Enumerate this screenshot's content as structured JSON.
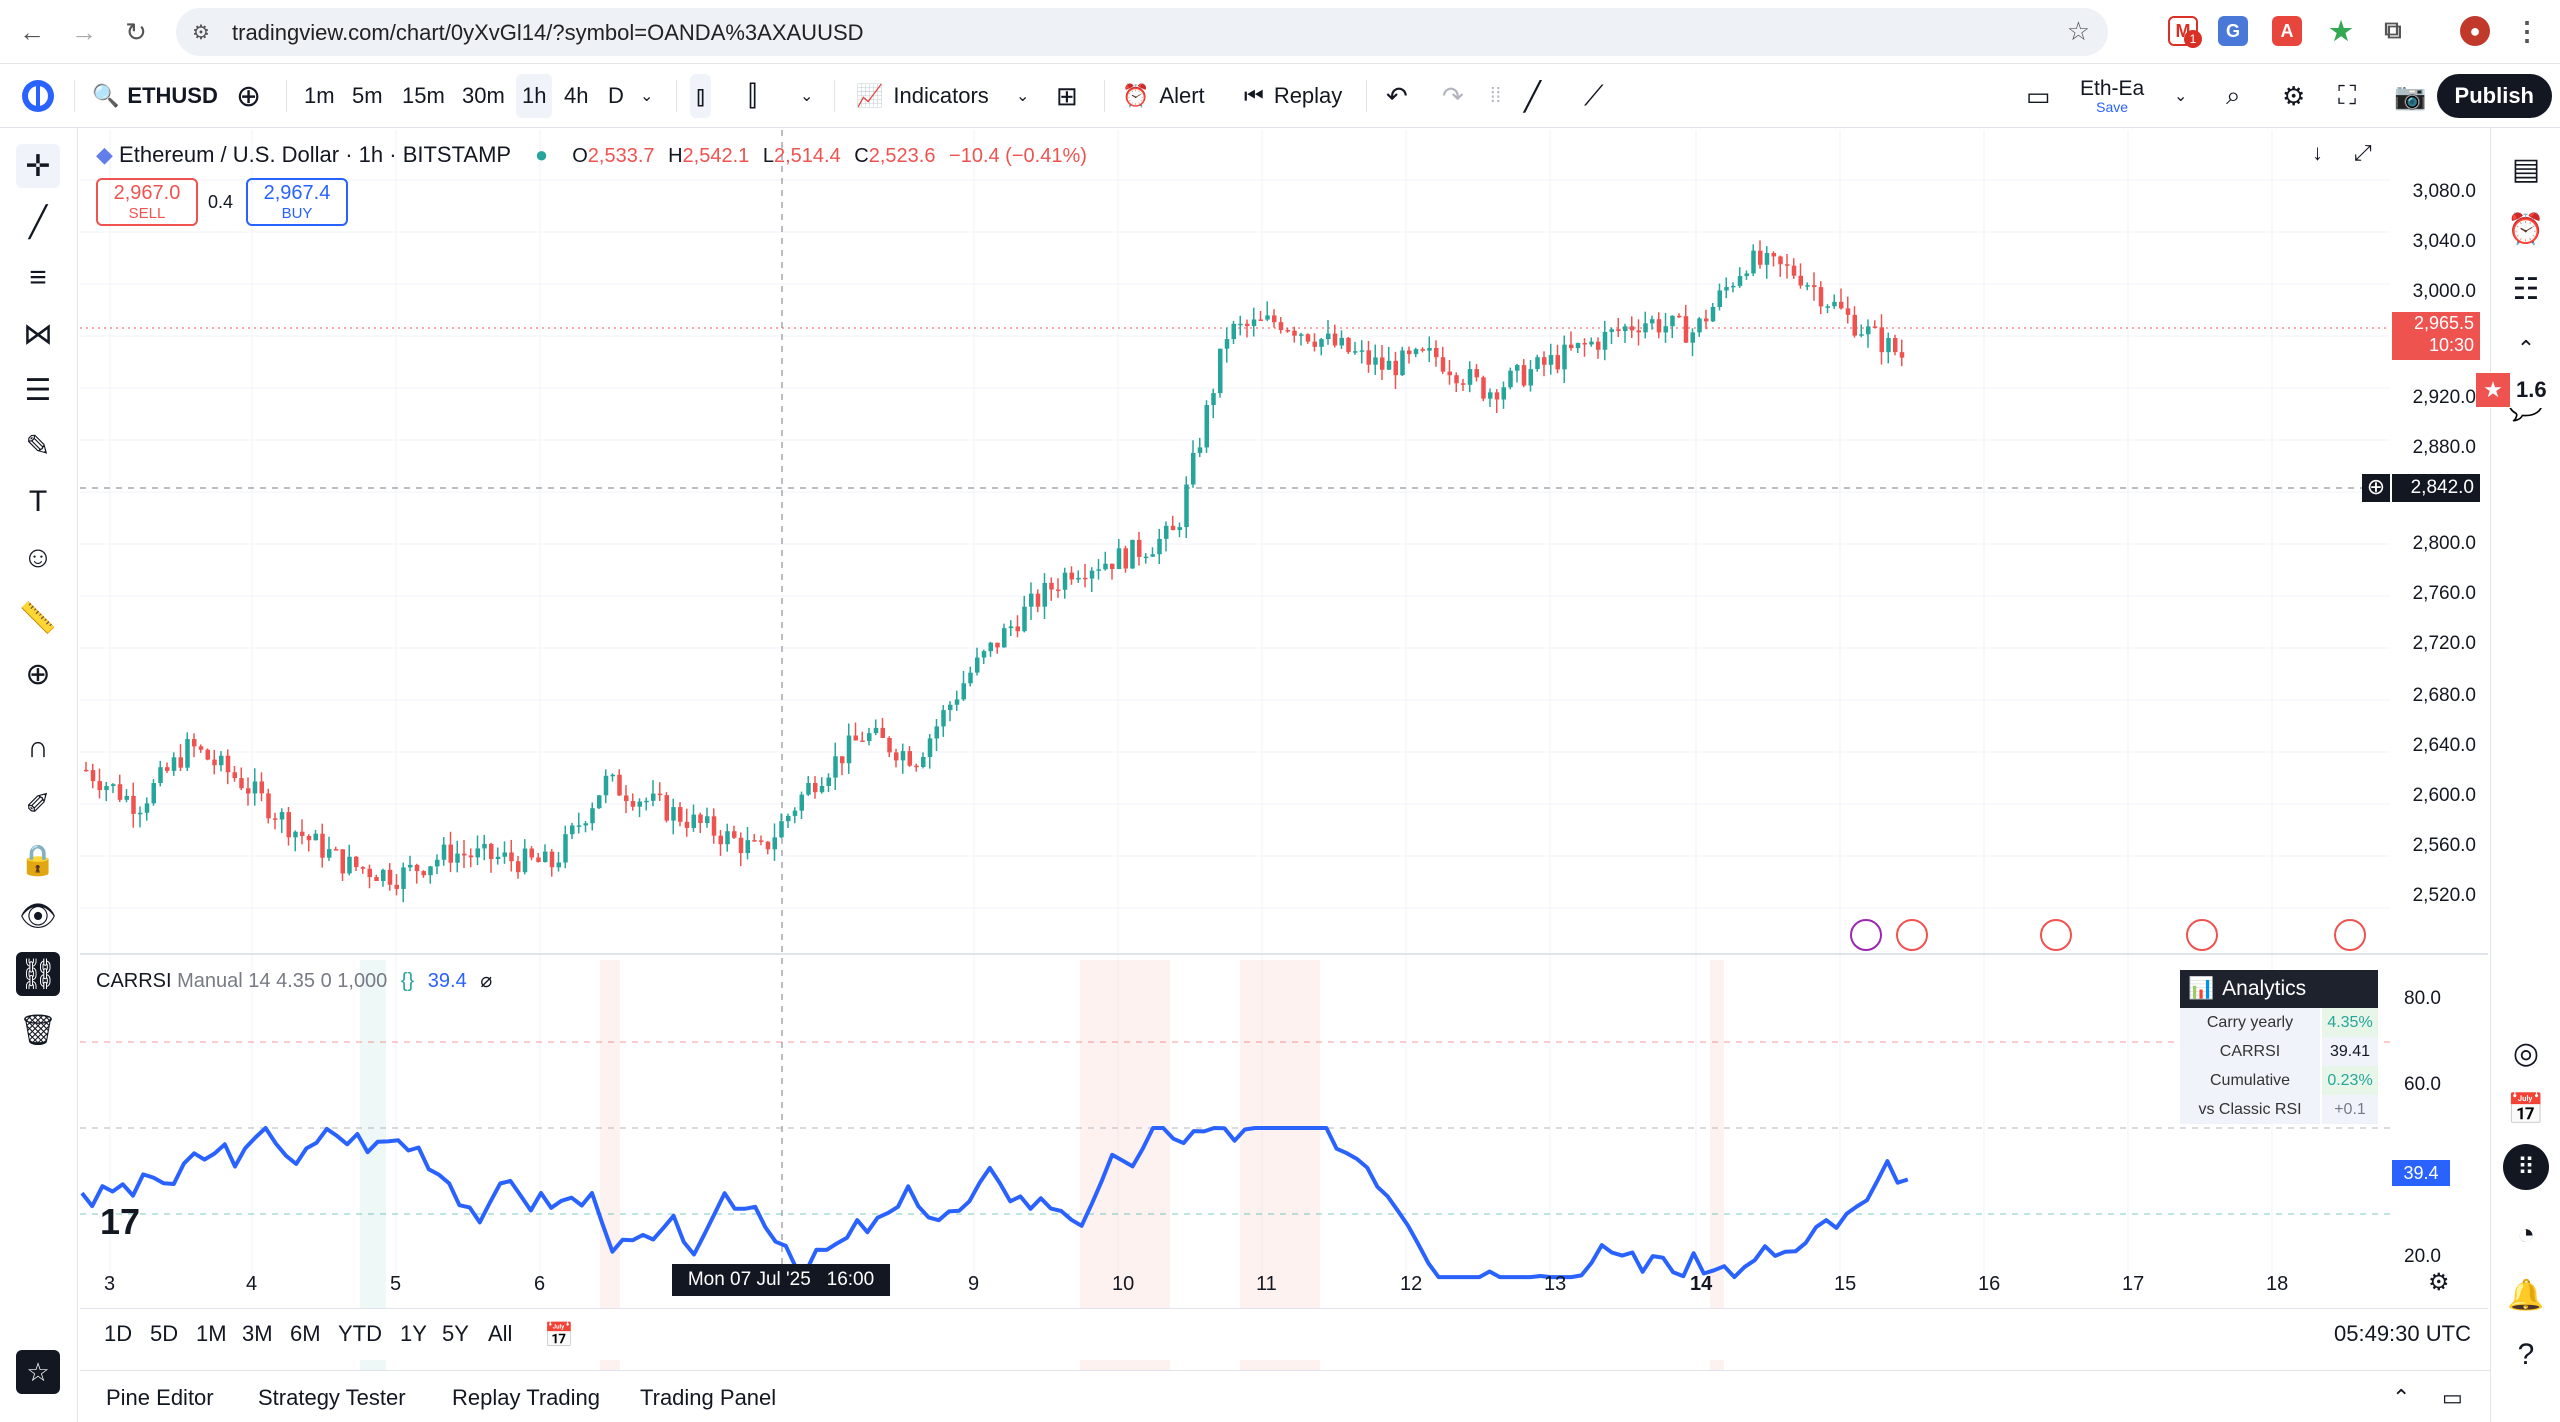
{
  "browser": {
    "url": "tradingview.com/chart/0yXvGl14/?symbol=OANDA%3AXAUUSD",
    "back_icon": "←",
    "forward_icon": "→",
    "reload_icon": "↻",
    "mail_badge": "1"
  },
  "toolbar": {
    "symbol": "ETHUSD",
    "intervals": [
      "1m",
      "5m",
      "15m",
      "30m",
      "1h",
      "4h",
      "D"
    ],
    "selected_interval": "1h",
    "indicators_label": "Indicators",
    "alert_label": "Alert",
    "replay_label": "Replay",
    "layout_name": "Eth-Ea",
    "layout_sub": "Save",
    "publish_label": "Publish"
  },
  "legend": {
    "title": "Ethereum / U.S. Dollar · 1h · BITSTAMP",
    "o_label": "O",
    "o_val": "2,533.7",
    "h_label": "H",
    "h_val": "2,542.1",
    "l_label": "L",
    "l_val": "2,514.4",
    "c_label": "C",
    "c_val": "2,523.6",
    "change": "−10.4 (−0.41%)",
    "sell_price": "2,967.0",
    "sell_label": "SELL",
    "spread": "0.4",
    "buy_price": "2,967.4",
    "buy_label": "BUY"
  },
  "price_axis": [
    "3,080.0",
    "3,040.0",
    "3,000.0",
    "2,920.0",
    "2,880.0",
    "2,800.0",
    "2,760.0",
    "2,720.0",
    "2,680.0",
    "2,640.0",
    "2,600.0",
    "2,560.0",
    "2,520.0"
  ],
  "last_price": {
    "price": "2,965.5",
    "countdown": "10:30"
  },
  "crosshair_price": "2,842.0",
  "badge_value": "1.6",
  "indicator": {
    "name": "CARRSI",
    "params": "Manual 14 4.35 0 1,000",
    "value": "39.4",
    "axis": [
      "80.0",
      "60.0",
      "20.0"
    ],
    "current_tag": "39.4"
  },
  "analytics": {
    "title": "Analytics",
    "rows": [
      {
        "label": "Carry yearly",
        "value": "4.35%"
      },
      {
        "label": "CARRSI",
        "value": "39.41"
      },
      {
        "label": "Cumulative",
        "value": "0.23%"
      },
      {
        "label": "vs Classic RSI",
        "value": "+0.1"
      }
    ]
  },
  "time_axis": [
    "3",
    "4",
    "5",
    "6",
    "9",
    "10",
    "11",
    "12",
    "13",
    "14",
    "15",
    "16",
    "17",
    "18"
  ],
  "crosshair_time": "Mon 07 Jul '25   16:00",
  "ranges": [
    "1D",
    "5D",
    "1M",
    "3M",
    "6M",
    "YTD",
    "1Y",
    "5Y",
    "All"
  ],
  "clock": "05:49:30 UTC",
  "bottom_tabs": [
    "Pine Editor",
    "Strategy Tester",
    "Replay Trading",
    "Trading Panel"
  ],
  "colors": {
    "up": "#26a69a",
    "down": "#ef5350",
    "rsi": "#2962ff",
    "accent": "#2962ff"
  },
  "chart_data": {
    "type": "candlestick",
    "ylim": [
      2500,
      3100
    ],
    "closes_approx": [
      2610,
      2580,
      2630,
      2600,
      2560,
      2530,
      2520,
      2540,
      2535,
      2530,
      2600,
      2580,
      2560,
      2540,
      2600,
      2640,
      2620,
      2690,
      2740,
      2780,
      2790,
      2810,
      2980,
      2990,
      2970,
      2950,
      2960,
      2930,
      2950,
      2970,
      2990,
      2980,
      3040,
      3030,
      2990,
      2960
    ]
  }
}
